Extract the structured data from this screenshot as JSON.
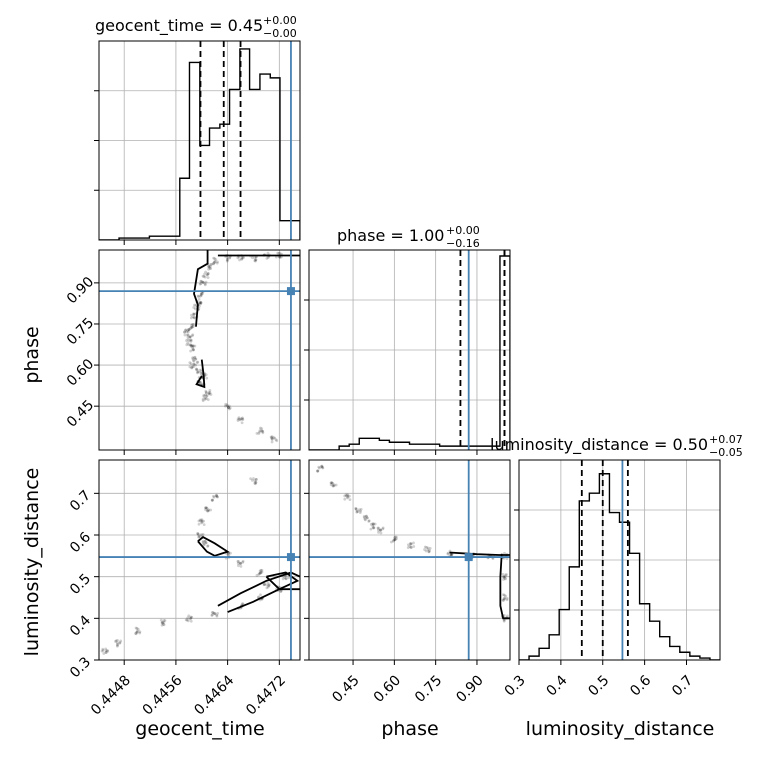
{
  "figure": {
    "type": "corner-plot"
  },
  "colors": {
    "truth": "#4682b4",
    "samples": "#000000",
    "grid": "#b0b0b0"
  },
  "titles": {
    "geocent_time": {
      "text": "geocent_time = 0.45",
      "plus": "+0.00",
      "minus": "−0.00"
    },
    "phase": {
      "text": "phase = 1.00",
      "plus": "+0.00",
      "minus": "−0.16"
    },
    "luminosity_distance": {
      "text": "luminosity_distance = 0.50",
      "plus": "+0.07",
      "minus": "−0.05"
    }
  },
  "axis_labels": {
    "geocent_time": "geocent_time",
    "phase": "phase",
    "luminosity_distance": "luminosity_distance"
  },
  "chart_data": {
    "type": "corner",
    "parameters": [
      "geocent_time",
      "phase",
      "luminosity_distance"
    ],
    "ranges": {
      "geocent_time": [
        0.44441,
        0.44752
      ],
      "phase": [
        0.29,
        1.02
      ],
      "luminosity_distance": [
        0.3,
        0.78
      ]
    },
    "ticks": {
      "geocent_time": [
        0.4448,
        0.4456,
        0.4464,
        0.4472
      ],
      "phase": [
        0.45,
        0.6,
        0.75,
        0.9
      ],
      "luminosity_distance": [
        0.3,
        0.4,
        0.5,
        0.6,
        0.7
      ]
    },
    "tick_labels": {
      "geocent_time": [
        "0.4448",
        "0.4456",
        "0.4464",
        "0.4472"
      ],
      "phase": [
        "0.45",
        "0.60",
        "0.75",
        "0.90"
      ],
      "luminosity_distance": [
        "0.3",
        "0.4",
        "0.5",
        "0.6",
        "0.7"
      ]
    },
    "truths": {
      "geocent_time": 0.44738,
      "phase": 0.87,
      "luminosity_distance": 0.547
    },
    "quantiles": {
      "geocent_time": [
        0.44598,
        0.44634,
        0.4466
      ],
      "phase": [
        0.84,
        1.0,
        1.0
      ],
      "luminosity_distance": [
        0.45,
        0.5,
        0.56
      ]
    },
    "histograms": {
      "geocent_time": {
        "edges": [
          0.44441,
          0.44457,
          0.44472,
          0.44488,
          0.44503,
          0.44519,
          0.44534,
          0.4455,
          0.44566,
          0.44581,
          0.44597,
          0.44612,
          0.44628,
          0.44643,
          0.44659,
          0.44674,
          0.4469,
          0.44706,
          0.44721,
          0.44737,
          0.44752
        ],
        "counts": [
          0,
          0,
          0.01,
          0.01,
          0.01,
          0.02,
          0.02,
          0.02,
          0.32,
          0.92,
          0.49,
          0.58,
          0.6,
          0.78,
          0.99,
          0.78,
          0.86,
          0.84,
          0.1,
          0.1
        ]
      },
      "phase": {
        "edges": [
          0.29,
          0.3265,
          0.363,
          0.3995,
          0.436,
          0.4725,
          0.509,
          0.5455,
          0.582,
          0.6185,
          0.655,
          0.6915,
          0.728,
          0.7645,
          0.801,
          0.8375,
          0.874,
          0.9105,
          0.947,
          0.9835,
          1.02
        ],
        "counts": [
          0,
          0,
          0,
          0.02,
          0.03,
          0.06,
          0.06,
          0.05,
          0.04,
          0.04,
          0.03,
          0.03,
          0.03,
          0.02,
          0.02,
          0.02,
          0.02,
          0.02,
          0.02,
          1.0
        ]
      },
      "luminosity_distance": {
        "edges": [
          0.3,
          0.324,
          0.348,
          0.372,
          0.396,
          0.42,
          0.444,
          0.468,
          0.492,
          0.516,
          0.54,
          0.564,
          0.588,
          0.612,
          0.636,
          0.66,
          0.684,
          0.708,
          0.732,
          0.756,
          0.78
        ],
        "counts": [
          0,
          0.02,
          0.06,
          0.13,
          0.26,
          0.48,
          0.82,
          0.86,
          0.96,
          0.76,
          0.71,
          0.55,
          0.29,
          0.2,
          0.12,
          0.07,
          0.04,
          0.02,
          0.01,
          0
        ]
      }
    },
    "scatter": {
      "phase_vs_geocent_time": [
        [
          0.44598,
          0.55
        ],
        [
          0.446,
          0.53
        ],
        [
          0.44604,
          0.56
        ],
        [
          0.44596,
          0.58
        ],
        [
          0.4459,
          0.62
        ],
        [
          0.44585,
          0.66
        ],
        [
          0.44582,
          0.7
        ],
        [
          0.44584,
          0.74
        ],
        [
          0.44588,
          0.78
        ],
        [
          0.44592,
          0.81
        ],
        [
          0.44595,
          0.83
        ],
        [
          0.44598,
          0.86
        ],
        [
          0.44602,
          0.9
        ],
        [
          0.44606,
          0.93
        ],
        [
          0.44612,
          0.96
        ],
        [
          0.4462,
          0.98
        ],
        [
          0.4464,
          0.99
        ],
        [
          0.4466,
          0.99
        ],
        [
          0.4468,
          0.99
        ],
        [
          0.447,
          1.0
        ],
        [
          0.4472,
          1.0
        ],
        [
          0.4461,
          0.5
        ],
        [
          0.44606,
          0.48
        ],
        [
          0.4464,
          0.45
        ],
        [
          0.4466,
          0.4
        ],
        [
          0.4469,
          0.36
        ],
        [
          0.44712,
          0.33
        ],
        [
          0.4458,
          0.68
        ],
        [
          0.44576,
          0.72
        ],
        [
          0.44586,
          0.6
        ]
      ],
      "luminosity_distance_vs_geocent_time": [
        [
          0.4462,
          0.69
        ],
        [
          0.4461,
          0.66
        ],
        [
          0.446,
          0.63
        ],
        [
          0.44598,
          0.6
        ],
        [
          0.44606,
          0.58
        ],
        [
          0.4464,
          0.55
        ],
        [
          0.4466,
          0.53
        ],
        [
          0.4469,
          0.51
        ],
        [
          0.4473,
          0.5
        ],
        [
          0.4472,
          0.47
        ],
        [
          0.4469,
          0.45
        ],
        [
          0.4466,
          0.43
        ],
        [
          0.4462,
          0.41
        ],
        [
          0.4458,
          0.4
        ],
        [
          0.4454,
          0.39
        ],
        [
          0.445,
          0.37
        ],
        [
          0.4447,
          0.34
        ],
        [
          0.4445,
          0.32
        ],
        [
          0.4468,
          0.73
        ],
        [
          0.447,
          0.48
        ]
      ],
      "luminosity_distance_vs_phase": [
        [
          0.33,
          0.76
        ],
        [
          0.38,
          0.72
        ],
        [
          0.43,
          0.69
        ],
        [
          0.47,
          0.66
        ],
        [
          0.5,
          0.64
        ],
        [
          0.52,
          0.62
        ],
        [
          0.55,
          0.61
        ],
        [
          0.6,
          0.59
        ],
        [
          0.66,
          0.575
        ],
        [
          0.72,
          0.565
        ],
        [
          0.8,
          0.555
        ],
        [
          0.88,
          0.55
        ],
        [
          0.95,
          0.548
        ],
        [
          1.0,
          0.55
        ],
        [
          1.0,
          0.5
        ],
        [
          1.0,
          0.45
        ],
        [
          1.0,
          0.4
        ]
      ]
    }
  }
}
